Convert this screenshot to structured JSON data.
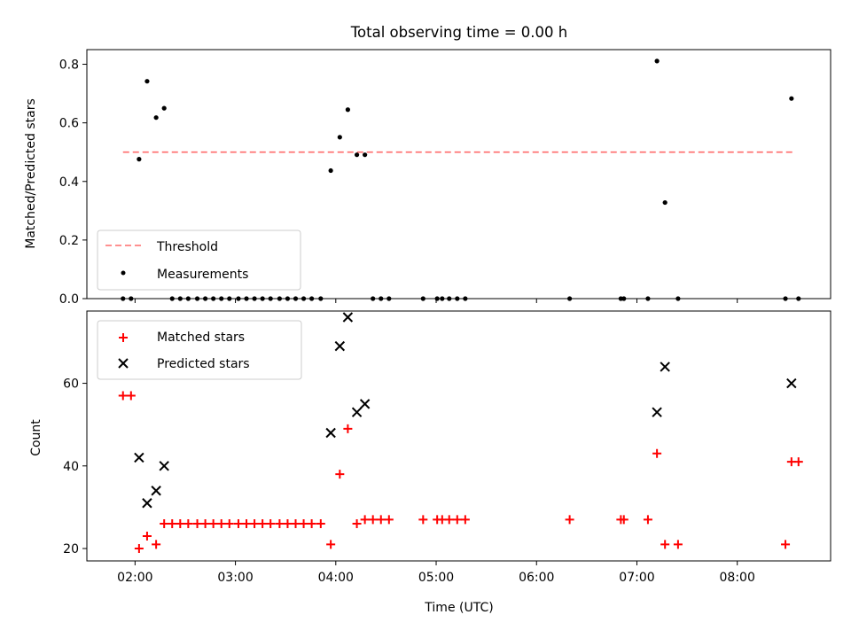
{
  "chart_data": [
    {
      "type": "scatter",
      "title": "Total observing time = 0.00 h",
      "ylabel": "Matched/Predicted stars",
      "xlim_hours": [
        1.52,
        8.93
      ],
      "ylim": [
        0,
        0.85
      ],
      "yticks": [
        0,
        0.2,
        0.4,
        0.6,
        0.8
      ],
      "ytick_labels": [
        "0.0",
        "0.2",
        "0.4",
        "0.6",
        "0.8"
      ],
      "legend": {
        "position": "lower-left",
        "entries": [
          "Threshold",
          "Measurements"
        ]
      },
      "threshold": {
        "name": "Threshold",
        "value": 0.5,
        "x_start": 1.88,
        "x_end": 8.58,
        "color": "#ff6b6b"
      },
      "measurements": {
        "name": "Measurements",
        "color": "#000000",
        "x": [
          1.88,
          1.96,
          2.04,
          2.12,
          2.21,
          2.29,
          2.37,
          2.45,
          2.53,
          2.62,
          2.7,
          2.78,
          2.86,
          2.94,
          3.03,
          3.11,
          3.19,
          3.27,
          3.35,
          3.44,
          3.52,
          3.6,
          3.68,
          3.76,
          3.85,
          3.95,
          4.04,
          4.12,
          4.21,
          4.29,
          4.37,
          4.45,
          4.53,
          4.87,
          5.01,
          5.06,
          5.13,
          5.21,
          5.29,
          6.33,
          6.84,
          6.87,
          7.11,
          7.2,
          7.28,
          7.41,
          8.48,
          8.54,
          8.61
        ],
        "y": [
          0,
          0,
          0.476,
          0.742,
          0.618,
          0.65,
          0,
          0,
          0,
          0,
          0,
          0,
          0,
          0,
          0,
          0,
          0,
          0,
          0,
          0,
          0,
          0,
          0,
          0,
          0,
          0.437,
          0.551,
          0.645,
          0.491,
          0.491,
          0,
          0,
          0,
          0,
          0,
          0,
          0,
          0,
          0,
          0,
          0,
          0,
          0,
          0.811,
          0.328,
          0,
          0,
          0.683,
          0
        ]
      }
    },
    {
      "type": "scatter",
      "xlabel": "Time (UTC)",
      "ylabel": "Count",
      "xlim_hours": [
        1.52,
        8.93
      ],
      "ylim": [
        17,
        77.5
      ],
      "yticks": [
        20,
        40,
        60
      ],
      "ytick_labels": [
        "20",
        "40",
        "60"
      ],
      "xticks_hours": [
        2,
        3,
        4,
        5,
        6,
        7,
        8
      ],
      "xtick_labels": [
        "02:00",
        "03:00",
        "04:00",
        "05:00",
        "06:00",
        "07:00",
        "08:00"
      ],
      "legend": {
        "position": "top-left",
        "entries": [
          "Matched stars",
          "Predicted stars"
        ]
      },
      "matched": {
        "name": "Matched stars",
        "color": "#ff0000",
        "x": [
          1.88,
          1.96,
          2.04,
          2.12,
          2.21,
          2.29,
          2.37,
          2.45,
          2.53,
          2.62,
          2.7,
          2.78,
          2.86,
          2.94,
          3.03,
          3.11,
          3.19,
          3.27,
          3.35,
          3.44,
          3.52,
          3.6,
          3.68,
          3.76,
          3.85,
          3.95,
          4.04,
          4.12,
          4.21,
          4.29,
          4.37,
          4.45,
          4.53,
          4.87,
          5.01,
          5.06,
          5.13,
          5.21,
          5.29,
          6.33,
          6.84,
          6.87,
          7.11,
          7.2,
          7.28,
          7.41,
          8.48,
          8.54,
          8.61
        ],
        "y": [
          57,
          57,
          20,
          23,
          21,
          26,
          26,
          26,
          26,
          26,
          26,
          26,
          26,
          26,
          26,
          26,
          26,
          26,
          26,
          26,
          26,
          26,
          26,
          26,
          26,
          21,
          38,
          49,
          26,
          27,
          27,
          27,
          27,
          27,
          27,
          27,
          27,
          27,
          27,
          27,
          27,
          27,
          27,
          43,
          21,
          21,
          21,
          41,
          41
        ]
      },
      "predicted": {
        "name": "Predicted stars",
        "color": "#000000",
        "x": [
          2.04,
          2.12,
          2.21,
          2.29,
          3.95,
          4.04,
          4.12,
          4.21,
          4.29,
          7.2,
          7.28,
          8.54
        ],
        "y": [
          42,
          31,
          34,
          40,
          48,
          69,
          76,
          53,
          55,
          53,
          64,
          60
        ]
      }
    }
  ]
}
